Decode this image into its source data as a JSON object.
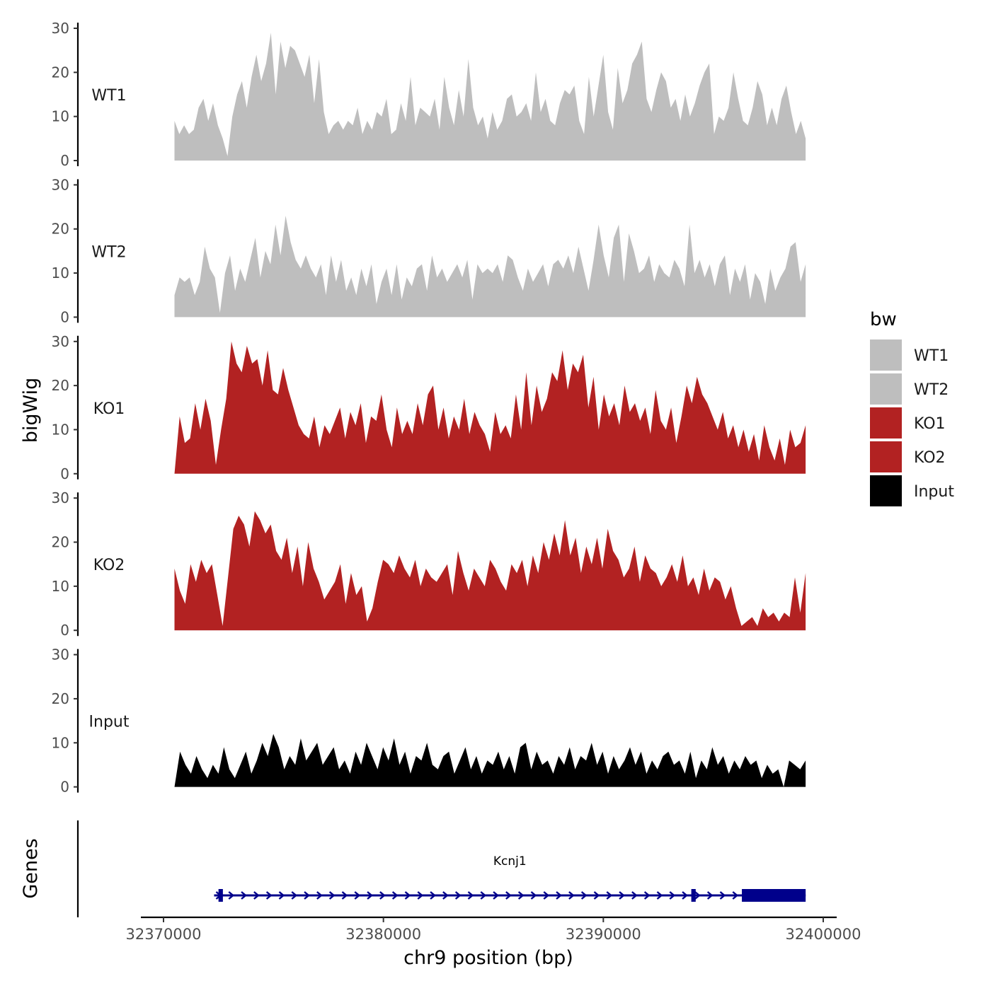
{
  "chart_data": {
    "type": "area",
    "ylabel": "bigWig",
    "xlabel": "chr9 position (bp)",
    "xlim": [
      32370000,
      32400000
    ],
    "x_ticks": [
      32370000,
      32380000,
      32390000,
      32400000
    ],
    "x_tick_labels": [
      "32370000",
      "32380000",
      "32390000",
      "32400000"
    ],
    "ylim": [
      0,
      30
    ],
    "y_ticks": [
      0,
      10,
      20,
      30
    ],
    "y_tick_labels": [
      "0",
      "10",
      "20",
      "30"
    ],
    "data_range": [
      32370500,
      32399200
    ],
    "legend": {
      "title": "bw",
      "position": "right",
      "entries": [
        {
          "label": "WT1",
          "color": "#bebebe"
        },
        {
          "label": "WT2",
          "color": "#bebebe"
        },
        {
          "label": "KO1",
          "color": "#b22222"
        },
        {
          "label": "KO2",
          "color": "#b22222"
        },
        {
          "label": "Input",
          "color": "#000000"
        }
      ]
    },
    "series": [
      {
        "name": "WT1",
        "color": "#bebebe",
        "values": [
          9,
          6,
          8,
          6,
          7,
          12,
          14,
          9,
          13,
          8,
          5,
          1,
          10,
          15,
          18,
          12,
          19,
          24,
          18,
          22,
          29,
          15,
          27,
          21,
          26,
          25,
          22,
          19,
          24,
          13,
          23,
          11,
          6,
          8,
          9,
          7,
          9,
          8,
          12,
          6,
          9,
          7,
          11,
          10,
          14,
          6,
          7,
          13,
          9,
          19,
          8,
          12,
          11,
          10,
          14,
          7,
          19,
          12,
          8,
          16,
          10,
          23,
          12,
          8,
          10,
          5,
          11,
          7,
          9,
          14,
          15,
          10,
          11,
          13,
          9,
          20,
          11,
          14,
          9,
          8,
          13,
          16,
          15,
          17,
          9,
          6,
          19,
          10,
          17,
          24,
          11,
          7,
          21,
          13,
          16,
          22,
          24,
          27,
          14,
          11,
          16,
          20,
          18,
          12,
          14,
          9,
          15,
          10,
          13,
          17,
          20,
          22,
          6,
          10,
          9,
          12,
          20,
          14,
          9,
          8,
          12,
          18,
          15,
          8,
          12,
          8,
          14,
          17,
          11,
          6,
          9,
          5
        ]
      },
      {
        "name": "WT2",
        "color": "#bebebe",
        "values": [
          5,
          9,
          8,
          9,
          5,
          8,
          16,
          11,
          9,
          1,
          10,
          14,
          6,
          11,
          8,
          13,
          18,
          9,
          15,
          12,
          21,
          14,
          23,
          17,
          13,
          11,
          14,
          11,
          9,
          12,
          5,
          14,
          8,
          13,
          6,
          9,
          5,
          11,
          7,
          12,
          3,
          8,
          11,
          5,
          12,
          4,
          9,
          7,
          11,
          12,
          6,
          14,
          9,
          11,
          8,
          10,
          12,
          9,
          13,
          4,
          12,
          10,
          11,
          10,
          12,
          8,
          14,
          13,
          9,
          6,
          11,
          8,
          10,
          12,
          7,
          12,
          13,
          11,
          14,
          10,
          16,
          11,
          6,
          13,
          21,
          14,
          9,
          18,
          21,
          8,
          19,
          15,
          10,
          11,
          14,
          8,
          12,
          10,
          9,
          13,
          11,
          7,
          21,
          10,
          13,
          9,
          12,
          7,
          12,
          14,
          5,
          11,
          8,
          12,
          4,
          10,
          8,
          3,
          11,
          6,
          9,
          11,
          16,
          17,
          8,
          12
        ]
      },
      {
        "name": "KO1",
        "color": "#b22222",
        "values": [
          0,
          13,
          7,
          8,
          16,
          10,
          17,
          12,
          2,
          10,
          17,
          30,
          25,
          23,
          29,
          25,
          26,
          20,
          28,
          19,
          18,
          24,
          19,
          15,
          11,
          9,
          8,
          13,
          6,
          11,
          9,
          12,
          15,
          8,
          14,
          11,
          16,
          7,
          13,
          12,
          18,
          10,
          6,
          15,
          9,
          12,
          9,
          16,
          11,
          18,
          20,
          10,
          15,
          8,
          13,
          10,
          17,
          9,
          14,
          11,
          9,
          5,
          14,
          9,
          11,
          8,
          18,
          10,
          23,
          11,
          20,
          14,
          17,
          23,
          21,
          28,
          19,
          25,
          23,
          27,
          15,
          22,
          10,
          18,
          13,
          16,
          11,
          20,
          14,
          16,
          12,
          15,
          9,
          19,
          12,
          10,
          15,
          7,
          13,
          20,
          16,
          22,
          18,
          16,
          13,
          10,
          14,
          8,
          11,
          6,
          10,
          5,
          9,
          3,
          11,
          6,
          3,
          8,
          2,
          10,
          6,
          7,
          11
        ]
      },
      {
        "name": "KO2",
        "color": "#b22222",
        "values": [
          14,
          9,
          6,
          15,
          11,
          16,
          13,
          15,
          8,
          1,
          12,
          23,
          26,
          24,
          19,
          27,
          25,
          22,
          24,
          18,
          16,
          21,
          13,
          19,
          10,
          20,
          14,
          11,
          7,
          9,
          11,
          15,
          6,
          13,
          8,
          10,
          2,
          5,
          11,
          16,
          15,
          13,
          17,
          14,
          12,
          16,
          10,
          14,
          12,
          11,
          13,
          15,
          8,
          18,
          13,
          9,
          14,
          12,
          10,
          16,
          14,
          11,
          9,
          15,
          13,
          16,
          10,
          17,
          13,
          20,
          16,
          22,
          17,
          25,
          17,
          21,
          13,
          19,
          15,
          21,
          14,
          23,
          18,
          16,
          12,
          14,
          19,
          11,
          17,
          14,
          13,
          10,
          12,
          15,
          11,
          17,
          10,
          12,
          8,
          14,
          9,
          12,
          11,
          7,
          10,
          5,
          1,
          2,
          3,
          1,
          5,
          3,
          4,
          2,
          4,
          3,
          12,
          4,
          13
        ]
      },
      {
        "name": "Input",
        "color": "#000000",
        "values": [
          0,
          8,
          5,
          3,
          7,
          4,
          2,
          5,
          3,
          9,
          4,
          2,
          5,
          8,
          3,
          6,
          10,
          7,
          12,
          9,
          4,
          7,
          5,
          11,
          6,
          8,
          10,
          5,
          7,
          9,
          4,
          6,
          3,
          8,
          5,
          10,
          7,
          4,
          9,
          6,
          11,
          5,
          8,
          3,
          7,
          6,
          10,
          5,
          4,
          7,
          8,
          3,
          6,
          9,
          4,
          7,
          3,
          6,
          5,
          8,
          4,
          7,
          3,
          9,
          10,
          4,
          8,
          5,
          6,
          3,
          7,
          5,
          9,
          4,
          7,
          6,
          10,
          5,
          8,
          3,
          7,
          4,
          6,
          9,
          5,
          8,
          3,
          6,
          4,
          7,
          8,
          5,
          6,
          3,
          8,
          2,
          6,
          4,
          9,
          5,
          7,
          3,
          6,
          4,
          7,
          5,
          6,
          2,
          5,
          3,
          4,
          0,
          6,
          5,
          4,
          6
        ]
      }
    ],
    "gene_track": {
      "label": "Genes",
      "genes": [
        {
          "name": "Kcnj1",
          "start": 32372300,
          "end": 32399200,
          "strand": "+",
          "exons": [
            [
              32372500,
              32372700
            ],
            [
              32394000,
              32394200
            ]
          ],
          "coding": [
            [
              32396300,
              32399200
            ]
          ],
          "color": "#00008b"
        }
      ]
    }
  }
}
